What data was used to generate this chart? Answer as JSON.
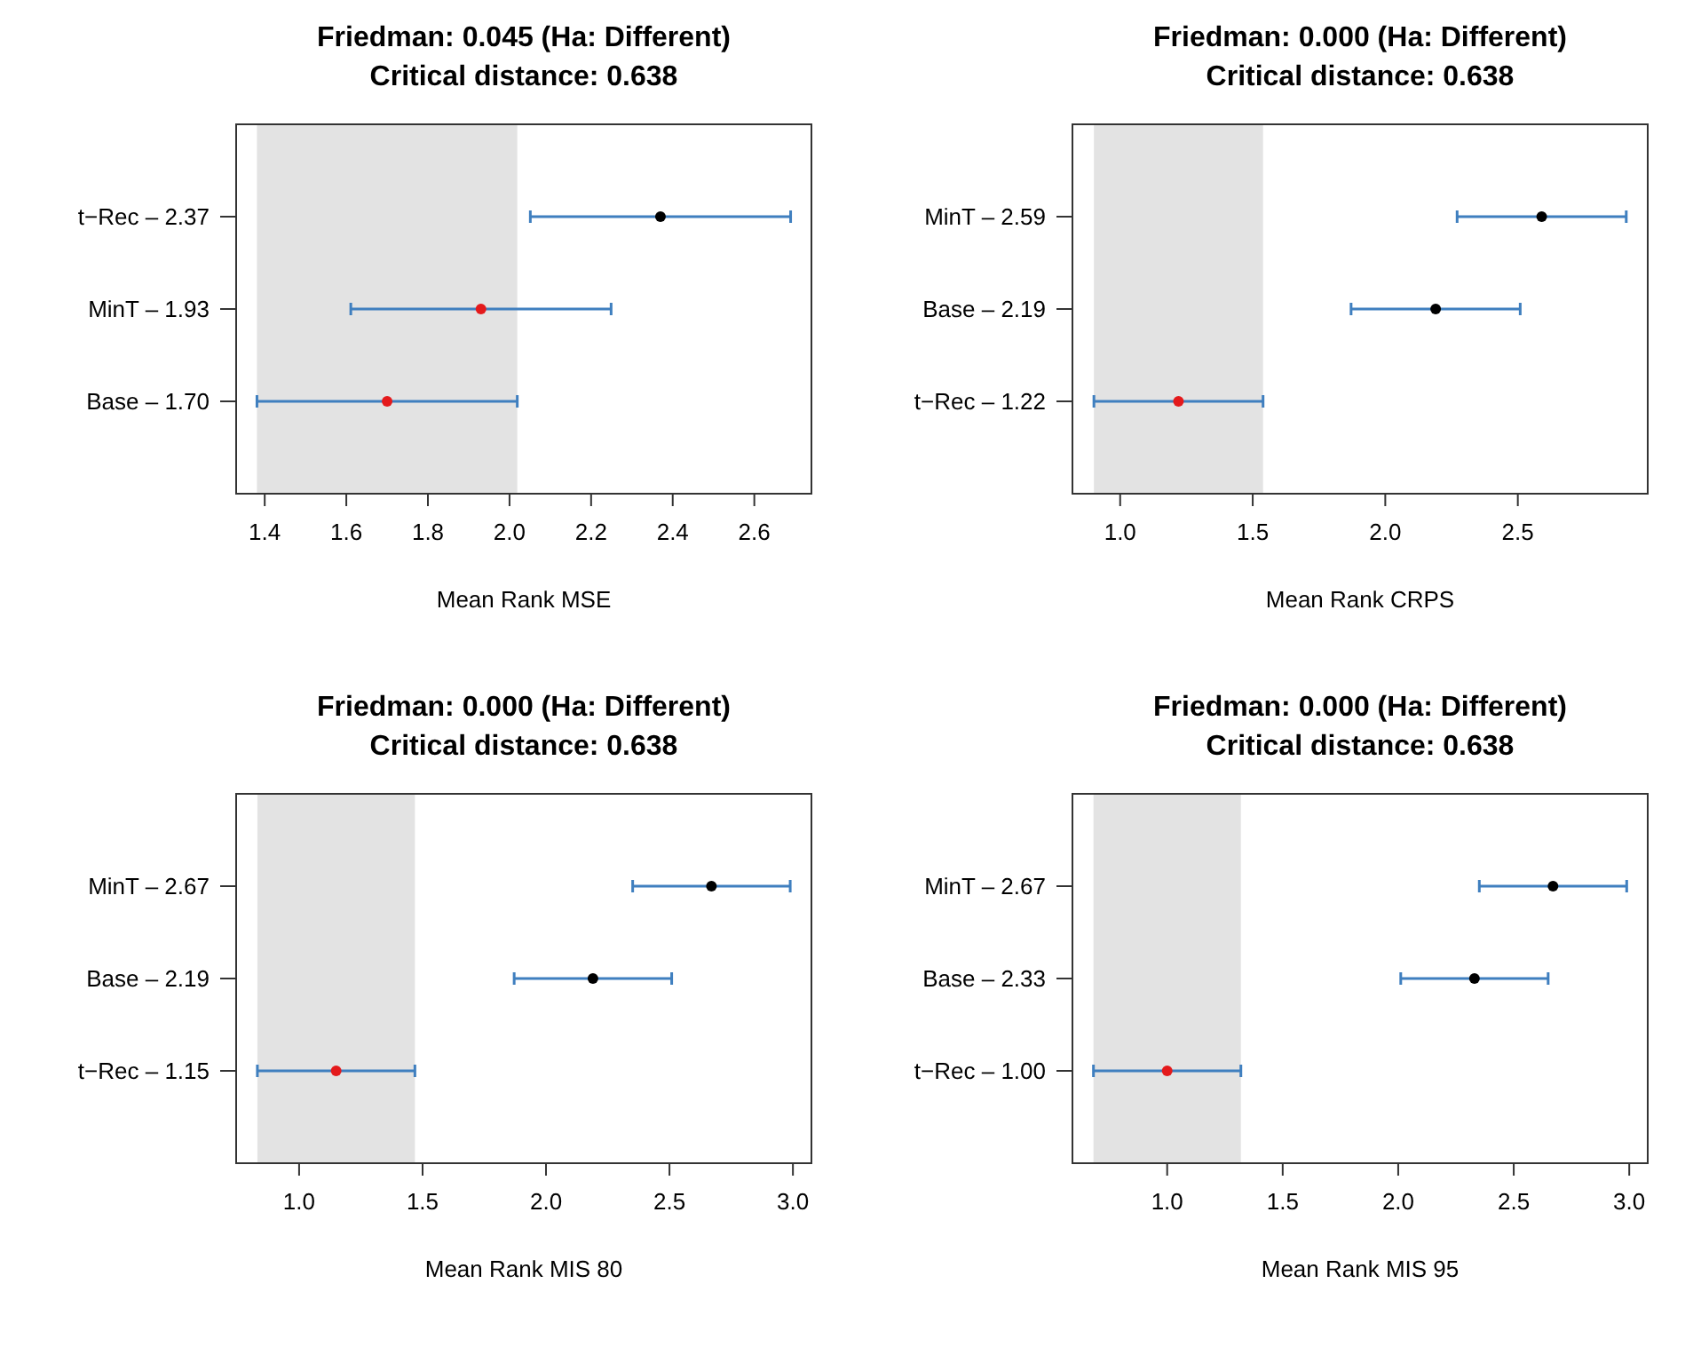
{
  "chart_data": [
    {
      "type": "scatter",
      "orientation": "horizontal",
      "title": "Friedman: 0.045 (Ha: Different)",
      "subtitle": "Critical distance: 0.638",
      "xlabel": "Mean Rank MSE",
      "categories": [
        "t−Rec – 2.37",
        "MinT – 1.93",
        "Base – 1.70"
      ],
      "values": [
        2.37,
        1.93,
        1.7
      ],
      "colors": [
        "#000000",
        "#e41a1c",
        "#e41a1c"
      ],
      "errors": [
        0.319,
        0.319,
        0.319
      ],
      "xlim": [
        1.33,
        2.74
      ],
      "xticks": [
        1.4,
        1.6,
        1.8,
        {
          "value": 2,
          "label": "2.0"
        },
        2.2,
        2.4,
        2.6
      ],
      "bands": [
        {
          "axis": "x",
          "from": 1.381,
          "to": 2.019,
          "color": "#e3e3e3"
        }
      ],
      "marker": "circle"
    },
    {
      "type": "scatter",
      "orientation": "horizontal",
      "title": "Friedman: 0.000 (Ha: Different)",
      "subtitle": "Critical distance: 0.638",
      "xlabel": "Mean Rank CRPS",
      "categories": [
        "MinT – 2.59",
        "Base – 2.19",
        "t−Rec – 1.22"
      ],
      "values": [
        2.59,
        2.19,
        1.22
      ],
      "colors": [
        "#000000",
        "#000000",
        "#e41a1c"
      ],
      "errors": [
        0.319,
        0.319,
        0.319
      ],
      "xlim": [
        0.82,
        2.99
      ],
      "xticks": [
        {
          "value": 1,
          "label": "1.0"
        },
        1.5,
        {
          "value": 2,
          "label": "2.0"
        },
        2.5
      ],
      "bands": [
        {
          "axis": "x",
          "from": 0.901,
          "to": 1.539,
          "color": "#e3e3e3"
        }
      ],
      "marker": "circle"
    },
    {
      "type": "scatter",
      "orientation": "horizontal",
      "title": "Friedman: 0.000 (Ha: Different)",
      "subtitle": "Critical distance: 0.638",
      "xlabel": "Mean Rank MIS 80",
      "categories": [
        "MinT – 2.67",
        "Base – 2.19",
        "t−Rec – 1.15"
      ],
      "values": [
        2.67,
        2.19,
        1.15
      ],
      "colors": [
        "#000000",
        "#000000",
        "#e41a1c"
      ],
      "errors": [
        0.319,
        0.319,
        0.319
      ],
      "xlim": [
        0.745,
        3.075
      ],
      "xticks": [
        {
          "value": 1,
          "label": "1.0"
        },
        1.5,
        {
          "value": 2,
          "label": "2.0"
        },
        2.5,
        {
          "value": 3,
          "label": "3.0"
        }
      ],
      "bands": [
        {
          "axis": "x",
          "from": 0.831,
          "to": 1.469,
          "color": "#e3e3e3"
        }
      ],
      "marker": "circle"
    },
    {
      "type": "scatter",
      "orientation": "horizontal",
      "title": "Friedman: 0.000 (Ha: Different)",
      "subtitle": "Critical distance: 0.638",
      "xlabel": "Mean Rank MIS 95",
      "categories": [
        "MinT – 2.67",
        "Base – 2.33",
        "t−Rec – 1.00"
      ],
      "values": [
        2.67,
        2.33,
        1.0
      ],
      "colors": [
        "#000000",
        "#000000",
        "#e41a1c"
      ],
      "errors": [
        0.319,
        0.319,
        0.319
      ],
      "xlim": [
        0.59,
        3.08
      ],
      "xticks": [
        {
          "value": 1,
          "label": "1.0"
        },
        1.5,
        {
          "value": 2,
          "label": "2.0"
        },
        2.5,
        {
          "value": 3,
          "label": "3.0"
        }
      ],
      "bands": [
        {
          "axis": "x",
          "from": 0.681,
          "to": 1.319,
          "color": "#e3e3e3"
        }
      ],
      "marker": "circle"
    }
  ]
}
